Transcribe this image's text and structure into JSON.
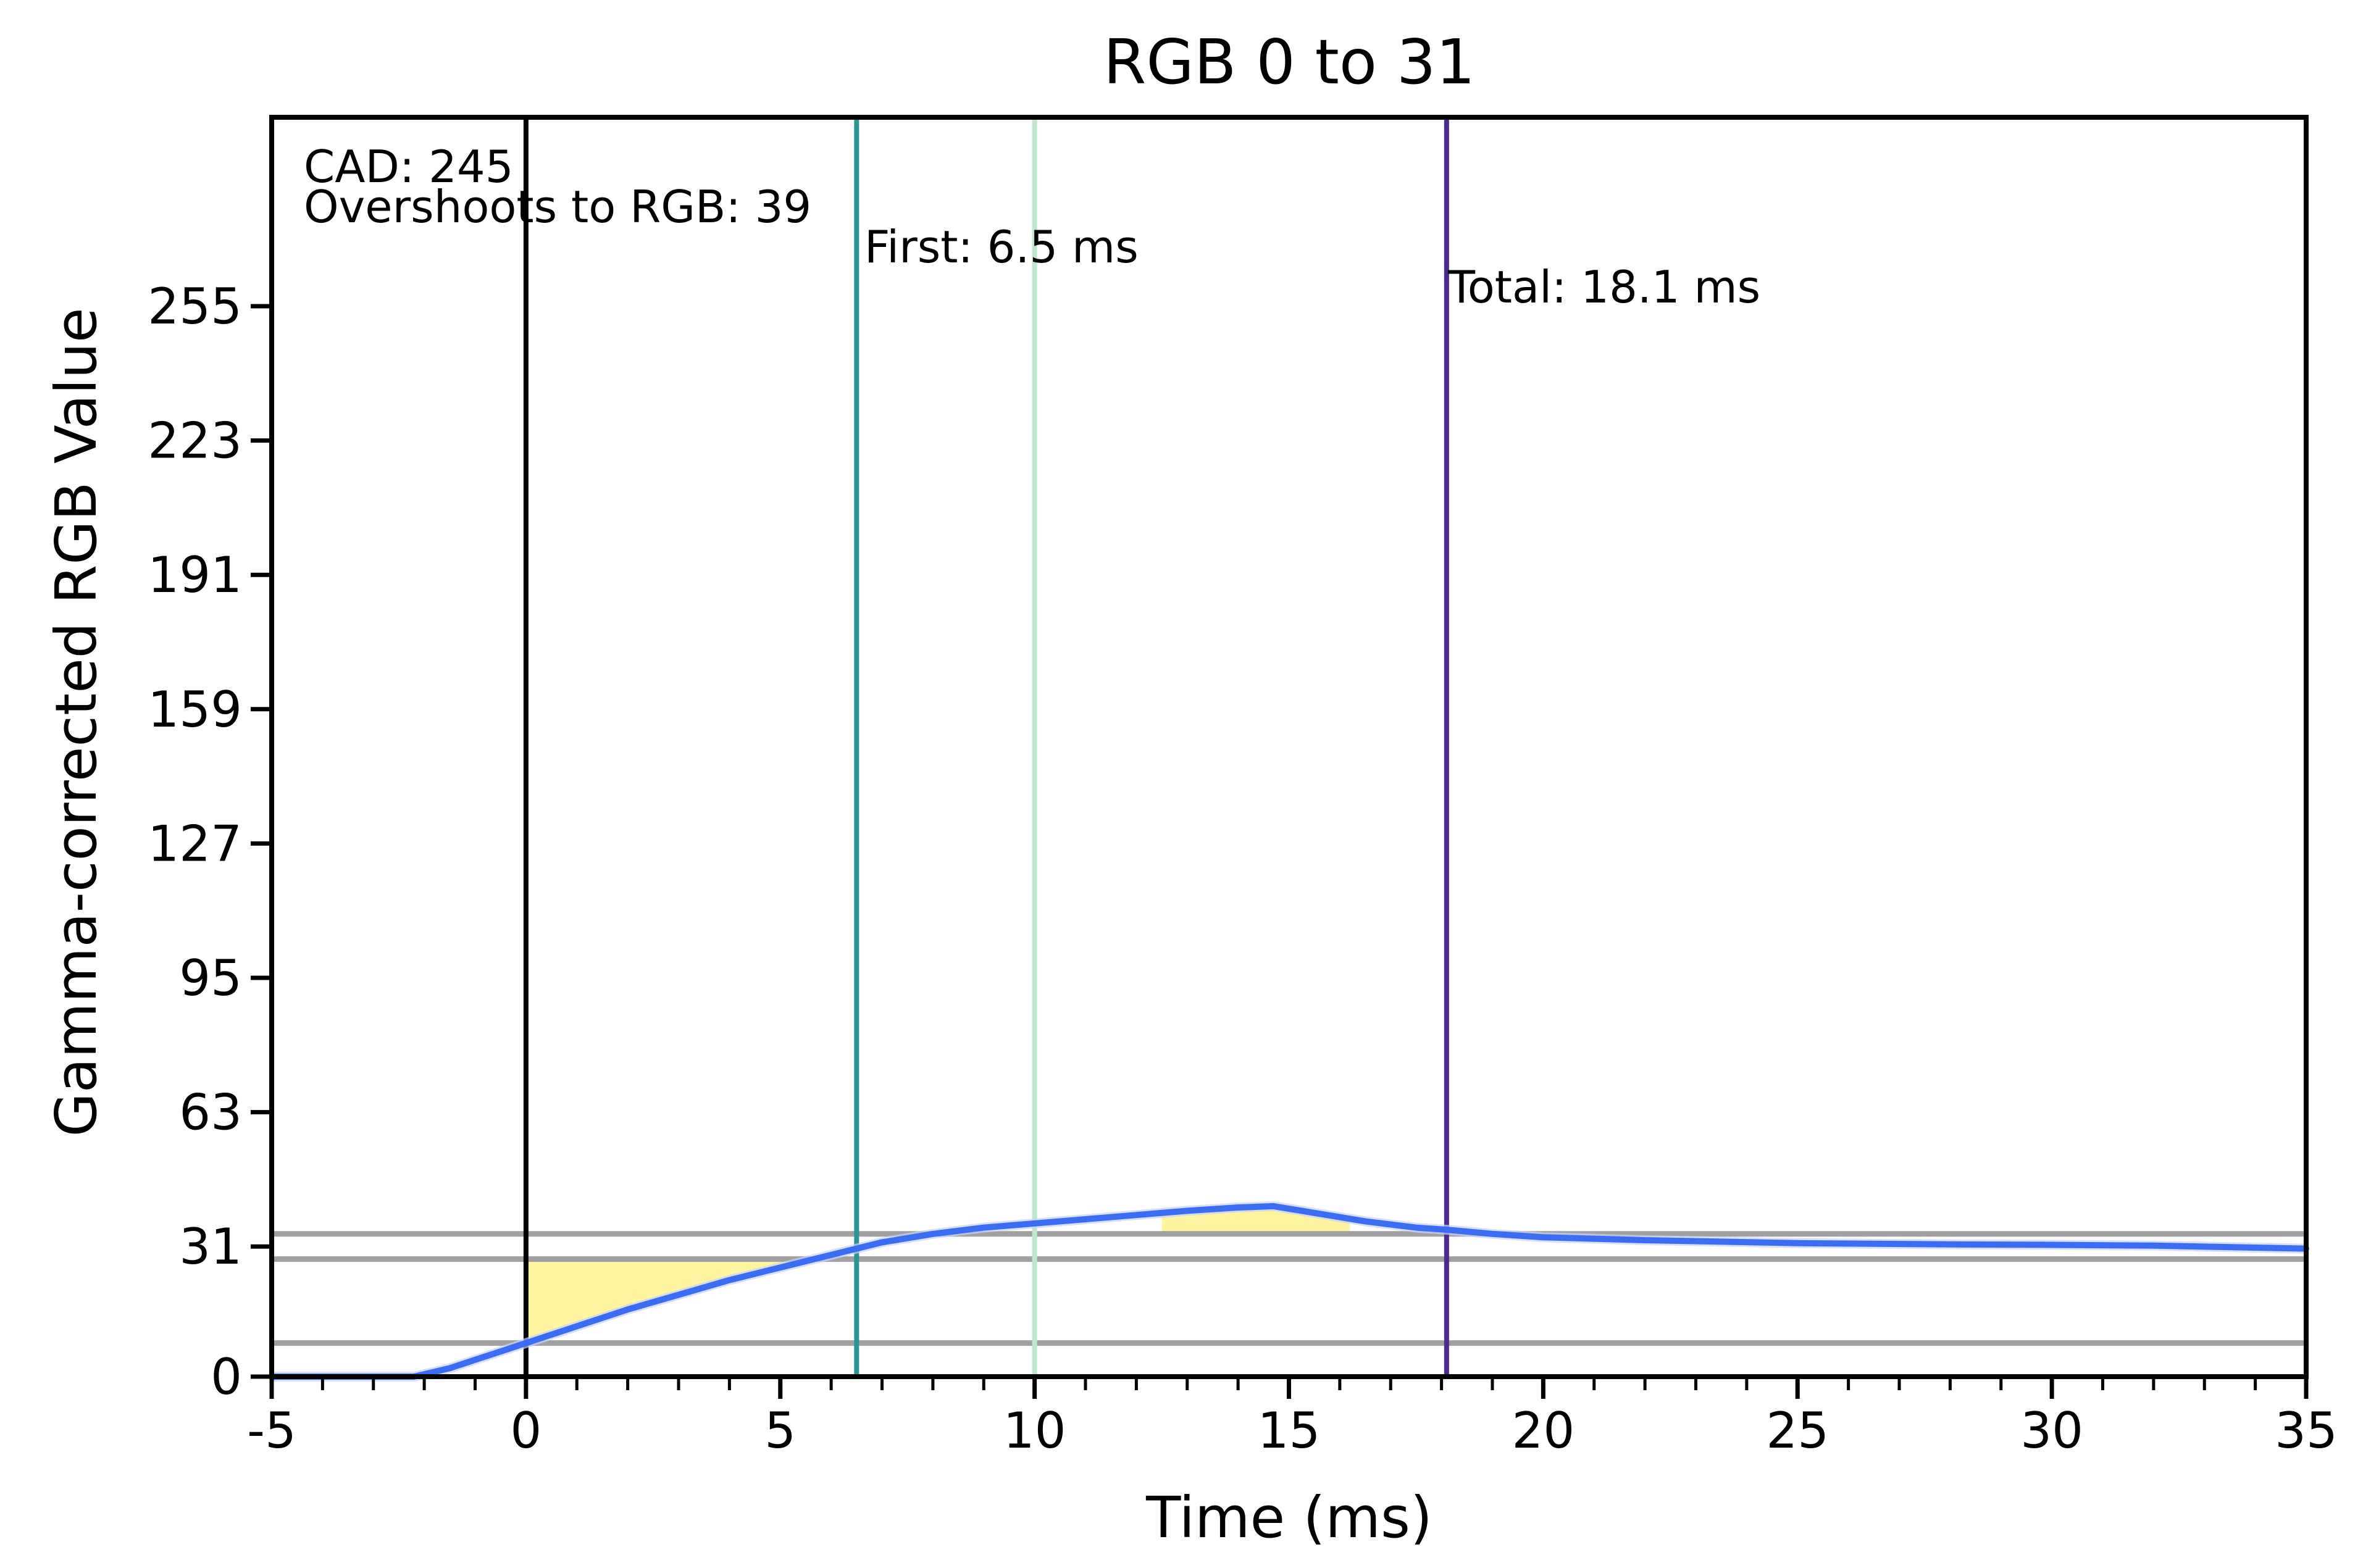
{
  "chart_data": {
    "type": "line",
    "title": "RGB 0 to 31",
    "xlabel": "Time (ms)",
    "ylabel": "Gamma-corrected RGB Value",
    "xlim": [
      -5,
      35
    ],
    "ylim": [
      0,
      300
    ],
    "x_ticks": [
      -5,
      0,
      5,
      10,
      15,
      20,
      25,
      30,
      35
    ],
    "x_tick_labels": [
      "-5",
      "0",
      "5",
      "10",
      "15",
      "20",
      "25",
      "30",
      "35"
    ],
    "y_ticks": [
      0,
      31,
      63,
      95,
      127,
      159,
      191,
      223,
      255
    ],
    "y_tick_labels": [
      "0",
      "31",
      "63",
      "95",
      "127",
      "159",
      "191",
      "223",
      "255"
    ],
    "grid": false,
    "series": [
      {
        "color": "#3a6cf4",
        "x": [
          -5,
          -4,
          -3,
          -2.2,
          -1.5,
          -1,
          -0.5,
          0,
          1,
          2,
          3,
          4,
          5,
          6,
          6.5,
          7,
          8,
          9,
          10,
          11,
          12,
          13,
          14,
          14.7,
          15.5,
          16.5,
          17.5,
          18.1,
          19,
          20,
          22,
          25,
          28,
          30,
          32,
          35
        ],
        "y": [
          0,
          0,
          0,
          0,
          2,
          4,
          6,
          8,
          12,
          16,
          19.5,
          23,
          26,
          29,
          30.5,
          32,
          34,
          35.5,
          36.5,
          37.5,
          38.5,
          39.5,
          40.3,
          40.6,
          39,
          37,
          35.5,
          35,
          34,
          33.2,
          32.5,
          31.8,
          31.5,
          31.4,
          31.2,
          30.5
        ]
      }
    ],
    "reference_lines": {
      "horizontal": [
        {
          "y": 8,
          "color": "#a0a0a0"
        },
        {
          "y": 28,
          "color": "#a0a0a0"
        },
        {
          "y": 34,
          "color": "#a0a0a0"
        }
      ],
      "vertical": [
        {
          "x": 0,
          "color": "#000000"
        },
        {
          "x": 6.5,
          "color": "#2a9595"
        },
        {
          "x": 10,
          "color": "#bfe6cf"
        },
        {
          "x": 18.1,
          "color": "#4b2a8f"
        }
      ]
    },
    "shaded_regions": [
      {
        "color": "#fff5a0",
        "x_from": 0,
        "x_to": 6.5,
        "upper_y": 28
      },
      {
        "color": "#fff5a0",
        "x_from": 12.5,
        "x_to": 16.2,
        "lower_y": 34
      }
    ],
    "annotations": {
      "cad": "CAD: 245",
      "overshoot": "Overshoots to RGB: 39",
      "first": "First: 6.5 ms",
      "total": "Total: 18.1 ms"
    }
  }
}
